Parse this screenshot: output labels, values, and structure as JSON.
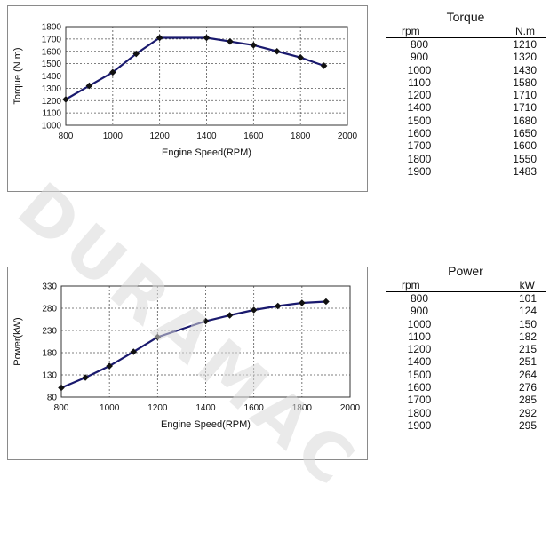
{
  "watermark": "DURAMAC",
  "chart_data": [
    {
      "type": "line",
      "title": "",
      "xlabel": "Engine Speed(RPM)",
      "ylabel": "Torque (N.m)",
      "xlim": [
        800,
        2000
      ],
      "ylim": [
        1000,
        1800
      ],
      "xticks": [
        800,
        1000,
        1200,
        1400,
        1600,
        1800,
        2000
      ],
      "yticks": [
        1000,
        1100,
        1200,
        1300,
        1400,
        1500,
        1600,
        1700,
        1800
      ],
      "grid": true,
      "marker": "diamond",
      "color": "#1a1a6e",
      "x": [
        800,
        900,
        1000,
        1100,
        1200,
        1400,
        1500,
        1600,
        1700,
        1800,
        1900
      ],
      "values": [
        1210,
        1320,
        1430,
        1580,
        1710,
        1710,
        1680,
        1650,
        1600,
        1550,
        1483
      ]
    },
    {
      "type": "line",
      "title": "",
      "xlabel": "Engine Speed(RPM)",
      "ylabel": "Power(kW)",
      "xlim": [
        800,
        2000
      ],
      "ylim": [
        80,
        330
      ],
      "xticks": [
        800,
        1000,
        1200,
        1400,
        1600,
        1800,
        2000
      ],
      "yticks": [
        80,
        130,
        180,
        230,
        280,
        330
      ],
      "grid": true,
      "marker": "diamond",
      "color": "#1a1a6e",
      "x": [
        800,
        900,
        1000,
        1100,
        1200,
        1400,
        1500,
        1600,
        1700,
        1800,
        1900
      ],
      "values": [
        101,
        124,
        150,
        182,
        215,
        251,
        264,
        276,
        285,
        292,
        295
      ]
    }
  ],
  "tables": {
    "torque": {
      "title": "Torque",
      "headers": [
        "rpm",
        "N.m"
      ],
      "rows": [
        [
          "800",
          "1210"
        ],
        [
          "900",
          "1320"
        ],
        [
          "1000",
          "1430"
        ],
        [
          "1100",
          "1580"
        ],
        [
          "1200",
          "1710"
        ],
        [
          "1400",
          "1710"
        ],
        [
          "1500",
          "1680"
        ],
        [
          "1600",
          "1650"
        ],
        [
          "1700",
          "1600"
        ],
        [
          "1800",
          "1550"
        ],
        [
          "1900",
          "1483"
        ]
      ]
    },
    "power": {
      "title": "Power",
      "headers": [
        "rpm",
        "kW"
      ],
      "rows": [
        [
          "800",
          "101"
        ],
        [
          "900",
          "124"
        ],
        [
          "1000",
          "150"
        ],
        [
          "1100",
          "182"
        ],
        [
          "1200",
          "215"
        ],
        [
          "1400",
          "251"
        ],
        [
          "1500",
          "264"
        ],
        [
          "1600",
          "276"
        ],
        [
          "1700",
          "285"
        ],
        [
          "1800",
          "292"
        ],
        [
          "1900",
          "295"
        ]
      ]
    }
  }
}
